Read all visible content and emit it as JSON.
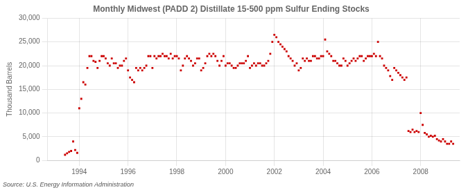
{
  "chart_data": {
    "type": "scatter",
    "title": "Monthly Midwest (PADD 2) Distillate 15-500 ppm Sulfur Ending Stocks",
    "ylabel": "Thousand Barrels",
    "annotations": [
      "Source: U.S. Energy Information Administration"
    ],
    "color": "#cc0000",
    "marker": "square",
    "grid": true,
    "xlim": [
      1992.7,
      2009.6
    ],
    "xticks": [
      1994,
      1996,
      1998,
      2000,
      2002,
      2004,
      2006,
      2008
    ],
    "ylim": [
      0,
      30000
    ],
    "yticks": [
      0,
      {
        "value": 5000,
        "label": "5,000"
      },
      {
        "value": 10000,
        "label": "10,000"
      },
      {
        "value": 15000,
        "label": "15,000"
      },
      {
        "value": 20000,
        "label": "20,000"
      },
      {
        "value": 25000,
        "label": "25,000"
      },
      {
        "value": 30000,
        "label": "30,000"
      }
    ],
    "x": [
      1993.417,
      1993.5,
      1993.583,
      1993.667,
      1993.75,
      1993.833,
      1993.917,
      1994.0,
      1994.083,
      1994.167,
      1994.25,
      1994.333,
      1994.417,
      1994.5,
      1994.583,
      1994.667,
      1994.75,
      1994.833,
      1994.917,
      1995.0,
      1995.083,
      1995.167,
      1995.25,
      1995.333,
      1995.417,
      1995.5,
      1995.583,
      1995.667,
      1995.75,
      1995.833,
      1995.917,
      1996.0,
      1996.083,
      1996.167,
      1996.25,
      1996.333,
      1996.417,
      1996.5,
      1996.583,
      1996.667,
      1996.75,
      1996.833,
      1996.917,
      1997.0,
      1997.083,
      1997.167,
      1997.25,
      1997.333,
      1997.417,
      1997.5,
      1997.583,
      1997.667,
      1997.75,
      1997.833,
      1997.917,
      1998.0,
      1998.083,
      1998.167,
      1998.25,
      1998.333,
      1998.417,
      1998.5,
      1998.583,
      1998.667,
      1998.75,
      1998.833,
      1998.917,
      1999.0,
      1999.083,
      1999.167,
      1999.25,
      1999.333,
      1999.417,
      1999.5,
      1999.583,
      1999.667,
      1999.75,
      1999.833,
      1999.917,
      2000.0,
      2000.083,
      2000.167,
      2000.25,
      2000.333,
      2000.417,
      2000.5,
      2000.583,
      2000.667,
      2000.75,
      2000.833,
      2000.917,
      2001.0,
      2001.083,
      2001.167,
      2001.25,
      2001.333,
      2001.417,
      2001.5,
      2001.583,
      2001.667,
      2001.75,
      2001.833,
      2001.917,
      2002.0,
      2002.083,
      2002.167,
      2002.25,
      2002.333,
      2002.417,
      2002.5,
      2002.583,
      2002.667,
      2002.75,
      2002.833,
      2002.917,
      2003.0,
      2003.083,
      2003.167,
      2003.25,
      2003.333,
      2003.417,
      2003.5,
      2003.583,
      2003.667,
      2003.75,
      2003.833,
      2003.917,
      2004.0,
      2004.083,
      2004.167,
      2004.25,
      2004.333,
      2004.417,
      2004.5,
      2004.583,
      2004.667,
      2004.75,
      2004.833,
      2004.917,
      2005.0,
      2005.083,
      2005.167,
      2005.25,
      2005.333,
      2005.417,
      2005.5,
      2005.583,
      2005.667,
      2005.75,
      2005.833,
      2005.917,
      2006.0,
      2006.083,
      2006.167,
      2006.25,
      2006.333,
      2006.417,
      2006.5,
      2006.583,
      2006.667,
      2006.75,
      2006.833,
      2006.917,
      2007.0,
      2007.083,
      2007.167,
      2007.25,
      2007.333,
      2007.417,
      2007.5,
      2007.583,
      2007.667,
      2007.75,
      2007.833,
      2007.917,
      2008.0,
      2008.083,
      2008.167,
      2008.25,
      2008.333,
      2008.417,
      2008.5,
      2008.583,
      2008.667,
      2008.75,
      2008.833,
      2008.917,
      2009.0,
      2009.083,
      2009.167,
      2009.25,
      2009.333
    ],
    "values": [
      1200,
      1500,
      1800,
      2000,
      4000,
      2200,
      1600,
      11000,
      13000,
      16500,
      16000,
      19500,
      22000,
      22000,
      21000,
      20800,
      19500,
      21000,
      22000,
      22000,
      21500,
      20500,
      20000,
      21500,
      20500,
      20500,
      19500,
      20000,
      20000,
      21000,
      21500,
      19000,
      17500,
      17000,
      16500,
      19500,
      19000,
      19500,
      19000,
      19500,
      20000,
      22000,
      22000,
      19500,
      22000,
      21500,
      22000,
      22000,
      22500,
      22000,
      22000,
      21500,
      22500,
      21500,
      22000,
      22000,
      21500,
      19000,
      20000,
      21500,
      22000,
      21500,
      21000,
      20000,
      20500,
      21500,
      21500,
      19000,
      19500,
      20500,
      22000,
      22500,
      22000,
      22500,
      22000,
      21000,
      20000,
      21000,
      22000,
      20000,
      20500,
      20500,
      20000,
      19500,
      19500,
      20000,
      20500,
      20500,
      20500,
      21000,
      22000,
      19500,
      20000,
      20500,
      20000,
      20500,
      20500,
      20000,
      20000,
      20500,
      21000,
      22500,
      25000,
      26500,
      26000,
      25000,
      24500,
      24000,
      23500,
      23000,
      22000,
      21500,
      21000,
      20000,
      20500,
      19000,
      19500,
      21500,
      21000,
      21500,
      21000,
      21000,
      22000,
      22000,
      21500,
      21500,
      22000,
      22000,
      25500,
      23000,
      22500,
      22000,
      21000,
      21000,
      20500,
      20000,
      20000,
      21500,
      21000,
      20000,
      20500,
      21000,
      21500,
      21000,
      21500,
      22000,
      22000,
      21000,
      21500,
      22000,
      22000,
      22000,
      22500,
      22000,
      25000,
      22000,
      21500,
      20000,
      19500,
      19000,
      17800,
      17000,
      19500,
      19000,
      18500,
      18000,
      17500,
      17000,
      17500,
      6200,
      6000,
      6500,
      6000,
      6200,
      6000,
      10000,
      7500,
      5800,
      5500,
      5000,
      5200,
      5000,
      5200,
      4500,
      4200,
      4000,
      4500,
      4000,
      3500,
      3500,
      4000,
      3500
    ]
  }
}
